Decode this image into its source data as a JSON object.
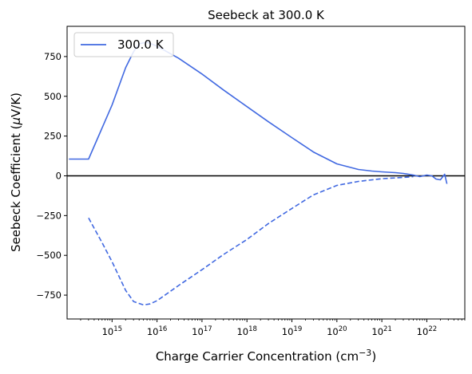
{
  "chart_data": {
    "type": "line",
    "title": "Seebeck at 300.0 K",
    "xlabel": "Charge Carrier Concentration (cm",
    "xlabel_sup": "−3",
    "xlabel_end": ")",
    "ylabel": "Seebeck Coefficient (",
    "ylabel_mu": "μ",
    "ylabel_end": "V/K)",
    "xscale": "log",
    "xlim": [
      100000000000000.0,
      7e+22
    ],
    "ylim": [
      -900,
      940
    ],
    "x_ticks": [
      {
        "value": 1000000000000000.0,
        "base": "10",
        "exp": "15"
      },
      {
        "value": 1e+16,
        "base": "10",
        "exp": "16"
      },
      {
        "value": 1e+17,
        "base": "10",
        "exp": "17"
      },
      {
        "value": 1e+18,
        "base": "10",
        "exp": "18"
      },
      {
        "value": 1e+19,
        "base": "10",
        "exp": "19"
      },
      {
        "value": 1e+20,
        "base": "10",
        "exp": "20"
      },
      {
        "value": 1e+21,
        "base": "10",
        "exp": "21"
      },
      {
        "value": 1e+22,
        "base": "10",
        "exp": "22"
      }
    ],
    "y_ticks": [
      {
        "value": 750,
        "label": "750"
      },
      {
        "value": 500,
        "label": "500"
      },
      {
        "value": 250,
        "label": "250"
      },
      {
        "value": 0,
        "label": "0"
      },
      {
        "value": -250,
        "label": "−250"
      },
      {
        "value": -500,
        "label": "−500"
      },
      {
        "value": -750,
        "label": "−750"
      }
    ],
    "grid": false,
    "legend_position": "top-left",
    "zero_line": true,
    "series": [
      {
        "name": "300.0 K",
        "style": "solid",
        "color": "#4169e1",
        "x": [
          110000000000000.0,
          300000000000000.0,
          1000000000000000.0,
          2000000000000000.0,
          3000000000000000.0,
          4000000000000000.0,
          6000000000000000.0,
          1e+16,
          3e+16,
          1e+17,
          3e+17,
          1e+18,
          3e+18,
          1e+19,
          3e+19,
          1e+20,
          3e+20,
          6e+20,
          1e+21,
          2e+21,
          3e+21,
          5e+21,
          7e+21,
          1e+22,
          1.3e+22,
          1.6e+22,
          2e+22,
          2.5e+22,
          2.8e+22
        ],
        "y": [
          105,
          105,
          445,
          680,
          780,
          830,
          840,
          815,
          740,
          640,
          540,
          435,
          340,
          240,
          150,
          75,
          40,
          30,
          25,
          20,
          15,
          5,
          -5,
          5,
          0,
          -20,
          -25,
          10,
          -50
        ]
      },
      {
        "name": "",
        "style": "dashed",
        "color": "#4169e1",
        "x": [
          300000000000000.0,
          600000000000000.0,
          1000000000000000.0,
          2000000000000000.0,
          3000000000000000.0,
          5000000000000000.0,
          7000000000000000.0,
          1e+16,
          3e+16,
          1e+17,
          3e+17,
          1e+18,
          3e+18,
          1e+19,
          3e+19,
          1e+20,
          3e+20,
          1e+21,
          3e+21,
          5e+21
        ],
        "y": [
          -265,
          -420,
          -540,
          -720,
          -790,
          -812,
          -805,
          -785,
          -690,
          -590,
          -495,
          -400,
          -300,
          -205,
          -120,
          -60,
          -35,
          -18,
          -10,
          -5
        ]
      }
    ]
  }
}
